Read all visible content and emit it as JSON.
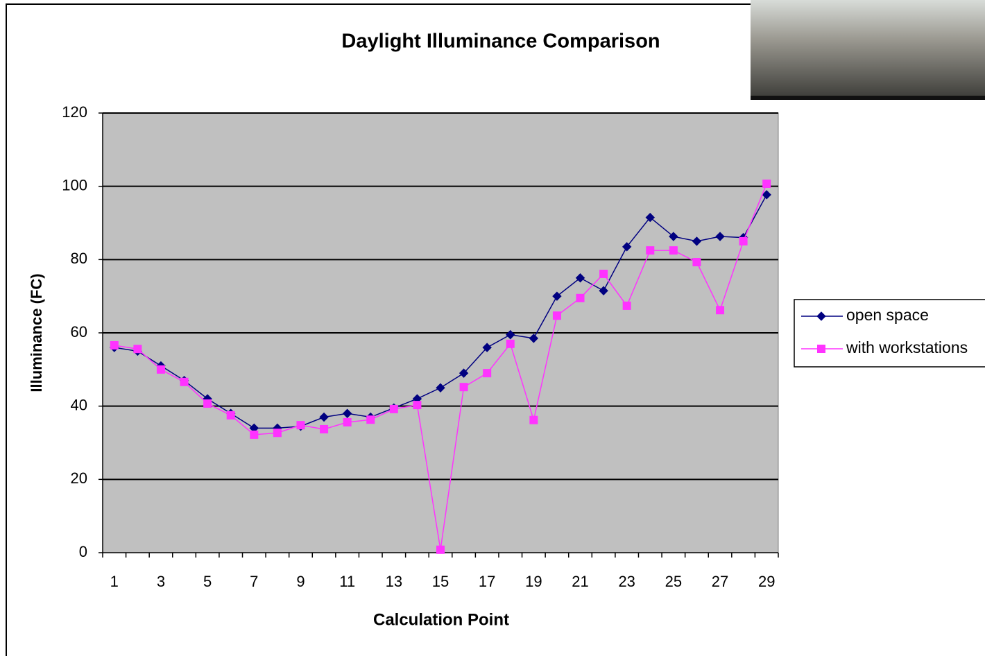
{
  "chart_data": {
    "type": "line",
    "title": "Daylight Illuminance Comparison",
    "x_label": "Calculation Point",
    "y_label": "Illuminance (FC)",
    "categories": [
      "1",
      null,
      "3",
      null,
      "5",
      null,
      "7",
      null,
      "9",
      null,
      "11",
      null,
      "13",
      null,
      "15",
      null,
      "17",
      null,
      "19",
      null,
      "21",
      null,
      "23",
      null,
      "25",
      null,
      "27",
      null,
      "29"
    ],
    "series": [
      {
        "name": "open space",
        "color": "#000080",
        "marker": "diamond",
        "values": [
          56,
          55,
          51,
          47,
          42,
          38,
          34,
          34,
          34.5,
          37,
          38,
          37,
          39.5,
          42,
          45,
          49,
          56,
          59.5,
          58.5,
          70,
          75,
          71.5,
          83.5,
          91.5,
          86.3,
          85,
          86.3,
          86,
          97.7
        ]
      },
      {
        "name": "with workstations",
        "color": "#ff33ff",
        "marker": "square",
        "values": [
          56.6,
          55.6,
          50,
          46.6,
          40.7,
          37.5,
          32.2,
          32.7,
          34.8,
          33.7,
          35.6,
          36.3,
          39.2,
          40.3,
          0.8,
          45.2,
          49,
          57,
          36.2,
          64.7,
          69.5,
          76.1,
          67.4,
          82.5,
          82.5,
          79.3,
          66.2,
          85,
          100.7
        ]
      }
    ],
    "ylim": [
      0,
      120
    ],
    "yticks": [
      0,
      20,
      40,
      60,
      80,
      100,
      120
    ],
    "grid": true,
    "plot_background": "#c0c0c0",
    "legend": "right"
  }
}
